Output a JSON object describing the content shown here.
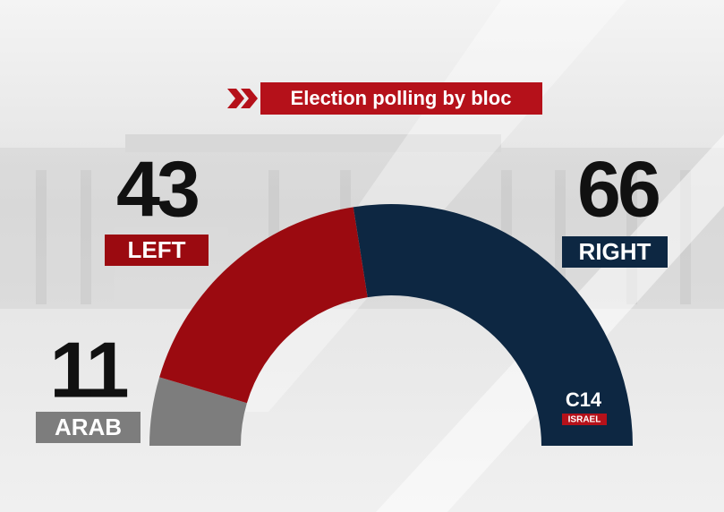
{
  "chart_data": {
    "type": "semi-donut",
    "title": "Election polling by bloc",
    "categories": [
      "ARAB",
      "LEFT",
      "RIGHT"
    ],
    "values": [
      11,
      43,
      66
    ],
    "colors": [
      "#7d7d7d",
      "#9b0a10",
      "#0d2742"
    ]
  },
  "logo": {
    "name": "C14",
    "subtitle": "ISRAEL"
  }
}
